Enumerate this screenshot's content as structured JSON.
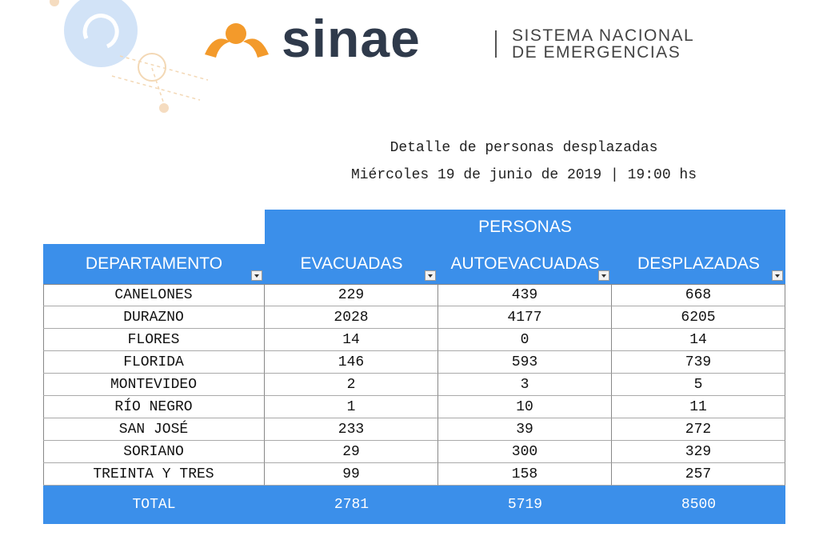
{
  "header": {
    "brand": "sinae",
    "tagline_1": "SISTEMA NACIONAL",
    "tagline_2": "DE EMERGENCIAS"
  },
  "title": "Detalle de personas desplazadas",
  "subtitle": "Miércoles 19 de junio de 2019 | 19:00 hs",
  "table": {
    "group_header": "PERSONAS",
    "columns": [
      "DEPARTAMENTO",
      "EVACUADAS",
      "AUTOEVACUADAS",
      "DESPLAZADAS"
    ],
    "rows": [
      [
        "CANELONES",
        229,
        439,
        668
      ],
      [
        "DURAZNO",
        2028,
        4177,
        6205
      ],
      [
        "FLORES",
        14,
        0,
        14
      ],
      [
        "FLORIDA",
        146,
        593,
        739
      ],
      [
        "MONTEVIDEO",
        2,
        3,
        5
      ],
      [
        "RÍO NEGRO",
        1,
        10,
        11
      ],
      [
        "SAN JOSÉ",
        233,
        39,
        272
      ],
      [
        "SORIANO",
        29,
        300,
        329
      ],
      [
        "TREINTA Y TRES",
        99,
        158,
        257
      ]
    ],
    "total": [
      "TOTAL",
      2781,
      5719,
      8500
    ]
  }
}
